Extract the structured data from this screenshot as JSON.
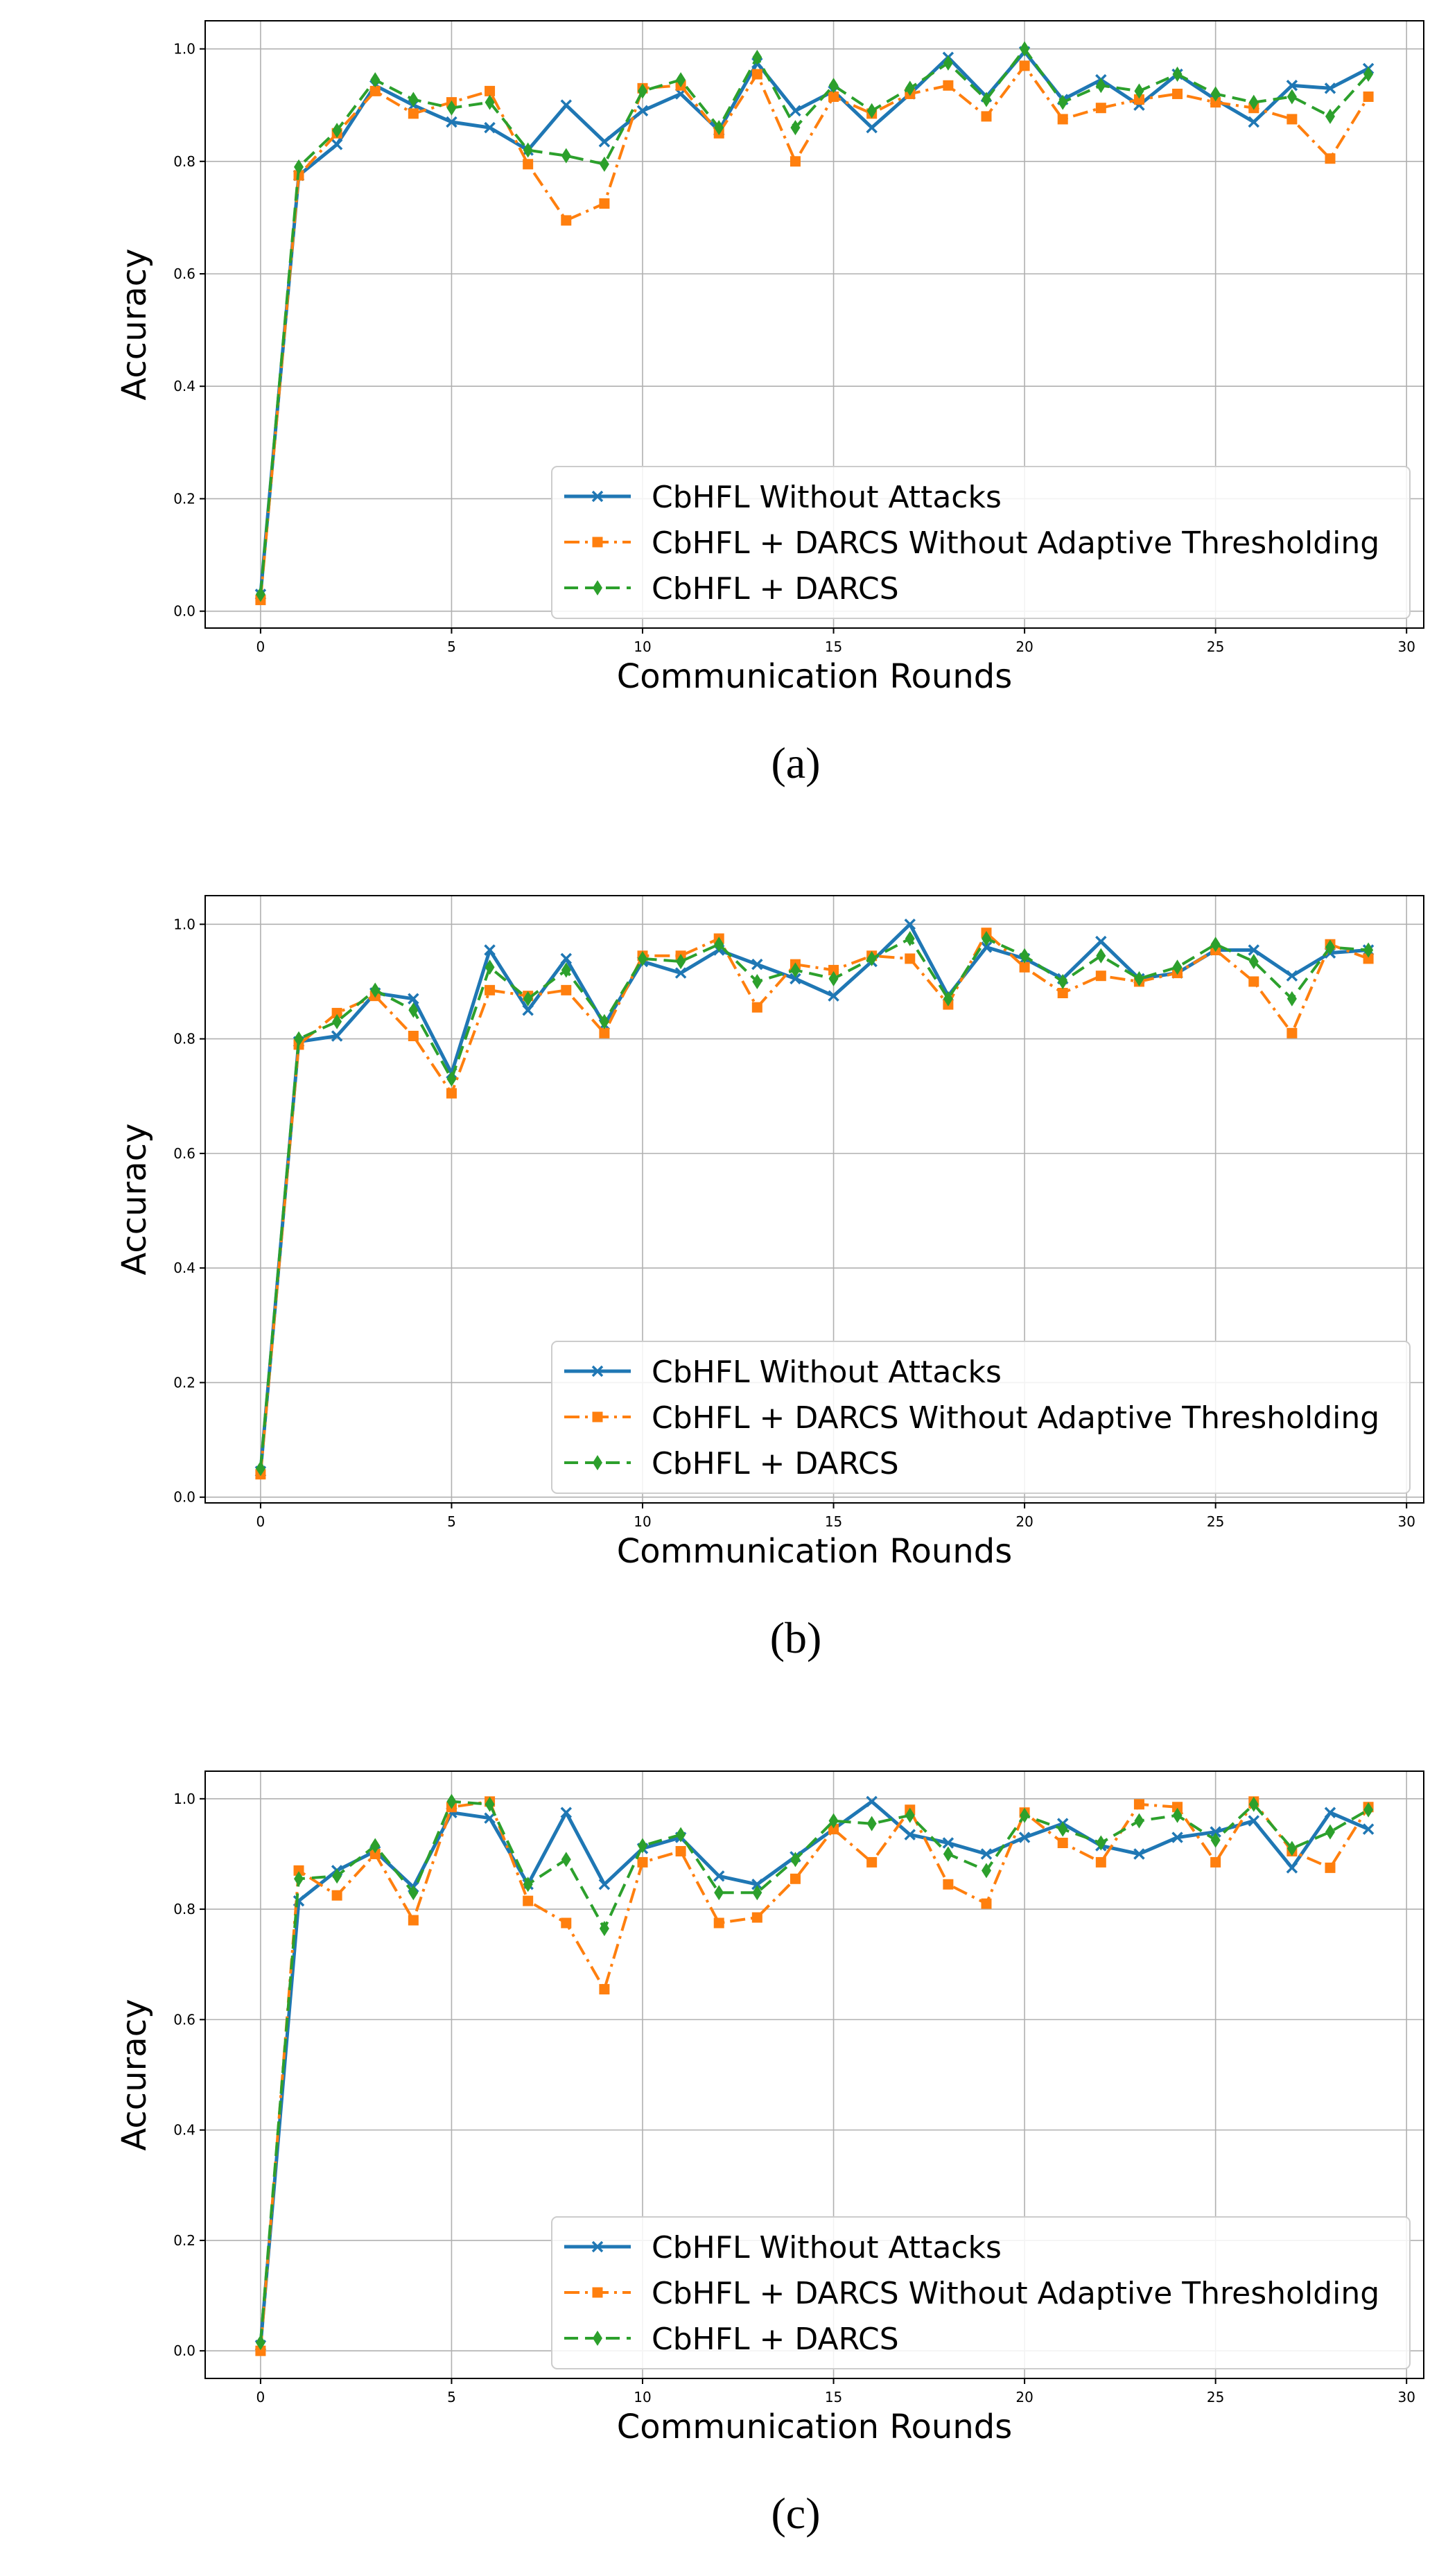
{
  "figure": {
    "legend": [
      {
        "label": "CbHFL Without Attacks",
        "color": "#1f77b4",
        "marker": "x",
        "dash": "solid"
      },
      {
        "label": "CbHFL + DARCS Without Adaptive Thresholding",
        "color": "#ff7f0e",
        "marker": "square",
        "dash": "dashdot"
      },
      {
        "label": "CbHFL + DARCS",
        "color": "#2ca02c",
        "marker": "diamond",
        "dash": "dashed"
      }
    ]
  },
  "chart_data": [
    {
      "type": "line",
      "caption": "(a)",
      "title": "",
      "xlabel": "Communication Rounds",
      "ylabel": "Accuracy",
      "xlim": [
        -1.45,
        30.45
      ],
      "ylim": [
        -0.03,
        1.05
      ],
      "xticks": [
        0,
        5,
        10,
        15,
        20,
        25,
        30
      ],
      "yticks": [
        "0.0",
        "0.2",
        "0.4",
        "0.6",
        "0.8",
        "1.0"
      ],
      "grid": true,
      "legend_position": "lower-right",
      "x": [
        0,
        1,
        2,
        3,
        4,
        5,
        6,
        7,
        8,
        9,
        10,
        11,
        12,
        13,
        14,
        15,
        16,
        17,
        18,
        19,
        20,
        21,
        22,
        23,
        24,
        25,
        26,
        27,
        28,
        29
      ],
      "series": [
        {
          "name": "CbHFL Without Attacks",
          "values": [
            0.03,
            0.775,
            0.83,
            0.935,
            0.9,
            0.87,
            0.86,
            0.82,
            0.9,
            0.835,
            0.89,
            0.92,
            0.855,
            0.975,
            0.89,
            0.925,
            0.86,
            0.92,
            0.985,
            0.915,
            0.995,
            0.91,
            0.945,
            0.9,
            0.955,
            0.91,
            0.87,
            0.935,
            0.93,
            0.965
          ]
        },
        {
          "name": "CbHFL + DARCS Without Adaptive Thresholding",
          "values": [
            0.02,
            0.775,
            0.85,
            0.925,
            0.885,
            0.905,
            0.925,
            0.795,
            0.695,
            0.725,
            0.93,
            0.935,
            0.85,
            0.955,
            0.8,
            0.915,
            0.885,
            0.92,
            0.935,
            0.88,
            0.97,
            0.875,
            0.895,
            0.91,
            0.92,
            0.905,
            0.895,
            0.875,
            0.805,
            0.915
          ]
        },
        {
          "name": "CbHFL + DARCS",
          "values": [
            0.03,
            0.79,
            0.855,
            0.945,
            0.91,
            0.895,
            0.905,
            0.82,
            0.81,
            0.795,
            0.925,
            0.945,
            0.86,
            0.985,
            0.86,
            0.935,
            0.89,
            0.93,
            0.975,
            0.91,
            1.0,
            0.905,
            0.935,
            0.925,
            0.955,
            0.92,
            0.905,
            0.915,
            0.88,
            0.955
          ]
        }
      ]
    },
    {
      "type": "line",
      "caption": "(b)",
      "title": "",
      "xlabel": "Communication Rounds",
      "ylabel": "Accuracy",
      "xlim": [
        -1.45,
        30.45
      ],
      "ylim": [
        -0.01,
        1.05
      ],
      "xticks": [
        0,
        5,
        10,
        15,
        20,
        25,
        30
      ],
      "yticks": [
        "0.0",
        "0.2",
        "0.4",
        "0.6",
        "0.8",
        "1.0"
      ],
      "grid": true,
      "legend_position": "lower-right",
      "x": [
        0,
        1,
        2,
        3,
        4,
        5,
        6,
        7,
        8,
        9,
        10,
        11,
        12,
        13,
        14,
        15,
        16,
        17,
        18,
        19,
        20,
        21,
        22,
        23,
        24,
        25,
        26,
        27,
        28,
        29
      ],
      "series": [
        {
          "name": "CbHFL Without Attacks",
          "values": [
            0.045,
            0.795,
            0.805,
            0.88,
            0.87,
            0.74,
            0.955,
            0.85,
            0.94,
            0.825,
            0.935,
            0.915,
            0.955,
            0.93,
            0.905,
            0.875,
            0.935,
            1.0,
            0.875,
            0.96,
            0.94,
            0.905,
            0.97,
            0.905,
            0.915,
            0.955,
            0.955,
            0.91,
            0.95,
            0.955
          ]
        },
        {
          "name": "CbHFL + DARCS Without Adaptive Thresholding",
          "values": [
            0.04,
            0.79,
            0.845,
            0.875,
            0.805,
            0.705,
            0.885,
            0.875,
            0.885,
            0.81,
            0.945,
            0.945,
            0.975,
            0.855,
            0.93,
            0.92,
            0.945,
            0.94,
            0.86,
            0.985,
            0.925,
            0.88,
            0.91,
            0.9,
            0.915,
            0.955,
            0.9,
            0.81,
            0.965,
            0.94
          ]
        },
        {
          "name": "CbHFL + DARCS",
          "values": [
            0.05,
            0.8,
            0.83,
            0.885,
            0.85,
            0.73,
            0.925,
            0.87,
            0.92,
            0.83,
            0.94,
            0.935,
            0.965,
            0.9,
            0.92,
            0.905,
            0.94,
            0.975,
            0.87,
            0.975,
            0.945,
            0.9,
            0.945,
            0.905,
            0.925,
            0.965,
            0.935,
            0.87,
            0.96,
            0.955
          ]
        }
      ]
    },
    {
      "type": "line",
      "caption": "(c)",
      "title": "",
      "xlabel": "Communication Rounds",
      "ylabel": "Accuracy",
      "xlim": [
        -1.45,
        30.45
      ],
      "ylim": [
        -0.05,
        1.05
      ],
      "xticks": [
        0,
        5,
        10,
        15,
        20,
        25,
        30
      ],
      "yticks": [
        "0.0",
        "0.2",
        "0.4",
        "0.6",
        "0.8",
        "1.0"
      ],
      "grid": true,
      "legend_position": "lower-right",
      "x": [
        0,
        1,
        2,
        3,
        4,
        5,
        6,
        7,
        8,
        9,
        10,
        11,
        12,
        13,
        14,
        15,
        16,
        17,
        18,
        19,
        20,
        21,
        22,
        23,
        24,
        25,
        26,
        27,
        28,
        29
      ],
      "series": [
        {
          "name": "CbHFL Without Attacks",
          "values": [
            0.01,
            0.815,
            0.87,
            0.905,
            0.84,
            0.975,
            0.965,
            0.845,
            0.975,
            0.845,
            0.91,
            0.93,
            0.86,
            0.845,
            0.895,
            0.945,
            0.995,
            0.935,
            0.92,
            0.9,
            0.93,
            0.955,
            0.915,
            0.9,
            0.93,
            0.94,
            0.96,
            0.875,
            0.975,
            0.945
          ]
        },
        {
          "name": "CbHFL + DARCS Without Adaptive Thresholding",
          "values": [
            0.0,
            0.87,
            0.825,
            0.9,
            0.78,
            0.985,
            0.995,
            0.815,
            0.775,
            0.655,
            0.885,
            0.905,
            0.775,
            0.785,
            0.855,
            0.945,
            0.885,
            0.98,
            0.845,
            0.81,
            0.975,
            0.92,
            0.885,
            0.99,
            0.985,
            0.885,
            0.995,
            0.905,
            0.875,
            0.985
          ]
        },
        {
          "name": "CbHFL + DARCS",
          "values": [
            0.015,
            0.855,
            0.86,
            0.915,
            0.83,
            0.995,
            0.99,
            0.845,
            0.89,
            0.765,
            0.915,
            0.935,
            0.83,
            0.83,
            0.89,
            0.96,
            0.955,
            0.97,
            0.9,
            0.87,
            0.97,
            0.945,
            0.92,
            0.96,
            0.97,
            0.925,
            0.99,
            0.91,
            0.94,
            0.98
          ]
        }
      ]
    }
  ]
}
